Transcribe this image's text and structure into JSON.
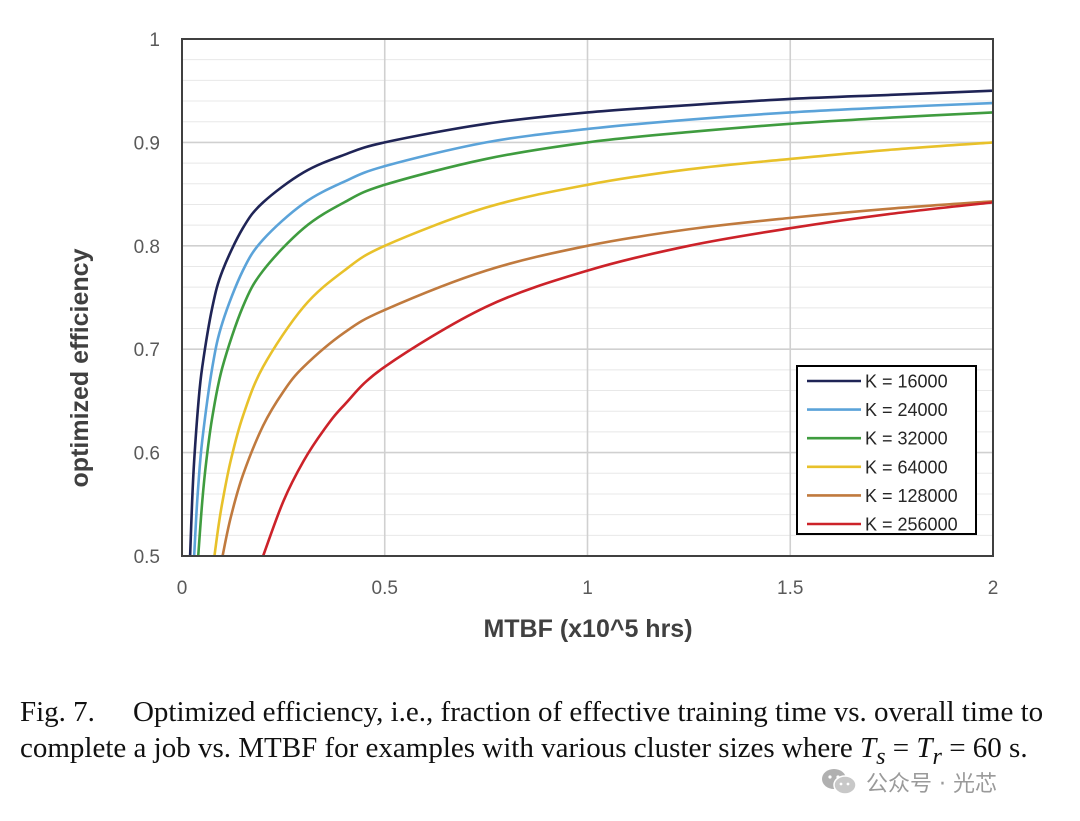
{
  "chart_data": {
    "type": "line",
    "title": "",
    "xlabel": "MTBF (x10^5 hrs)",
    "ylabel": "optimized efficiency",
    "xlim": [
      0,
      2
    ],
    "ylim": [
      0.5,
      1
    ],
    "x_ticks": [
      "0",
      "0.5",
      "1",
      "1.5",
      "2"
    ],
    "y_ticks": [
      "0.5",
      "0.6",
      "0.7",
      "0.8",
      "0.9",
      "1"
    ],
    "grid": "major and minor horizontal, major vertical",
    "legend_position": "bottom-right",
    "series": [
      {
        "name": "K = 16000",
        "color": "#1f2456",
        "x": [
          0.02,
          0.025,
          0.03,
          0.04,
          0.05,
          0.075,
          0.1,
          0.15,
          0.2,
          0.3,
          0.4,
          0.5,
          0.75,
          1.0,
          1.25,
          1.5,
          1.75,
          2.0
        ],
        "y": [
          0.5,
          0.553,
          0.592,
          0.646,
          0.683,
          0.741,
          0.776,
          0.817,
          0.842,
          0.871,
          0.888,
          0.9,
          0.918,
          0.929,
          0.936,
          0.942,
          0.946,
          0.95
        ]
      },
      {
        "name": "K = 24000",
        "color": "#5ba3d9",
        "x": [
          0.03,
          0.035,
          0.04,
          0.05,
          0.075,
          0.1,
          0.15,
          0.2,
          0.3,
          0.4,
          0.5,
          0.75,
          1.0,
          1.25,
          1.5,
          1.75,
          2.0
        ],
        "y": [
          0.5,
          0.537,
          0.567,
          0.612,
          0.683,
          0.726,
          0.776,
          0.806,
          0.841,
          0.862,
          0.877,
          0.9,
          0.913,
          0.922,
          0.929,
          0.934,
          0.938
        ]
      },
      {
        "name": "K = 32000",
        "color": "#3f9c3f",
        "x": [
          0.04,
          0.05,
          0.06,
          0.075,
          0.1,
          0.15,
          0.2,
          0.3,
          0.4,
          0.5,
          0.75,
          1.0,
          1.25,
          1.5,
          1.75,
          2.0
        ],
        "y": [
          0.5,
          0.553,
          0.592,
          0.635,
          0.683,
          0.741,
          0.776,
          0.817,
          0.842,
          0.859,
          0.884,
          0.9,
          0.91,
          0.918,
          0.924,
          0.929
        ]
      },
      {
        "name": "K = 64000",
        "color": "#e8c12a",
        "x": [
          0.08,
          0.09,
          0.1,
          0.12,
          0.15,
          0.2,
          0.3,
          0.4,
          0.5,
          0.75,
          1.0,
          1.25,
          1.5,
          1.75,
          2.0
        ],
        "y": [
          0.5,
          0.529,
          0.553,
          0.592,
          0.635,
          0.683,
          0.741,
          0.776,
          0.8,
          0.837,
          0.859,
          0.874,
          0.884,
          0.893,
          0.9
        ]
      },
      {
        "name": "K = 128000",
        "color": "#c07a3e",
        "x": [
          0.1,
          0.12,
          0.15,
          0.2,
          0.25,
          0.3,
          0.4,
          0.5,
          0.75,
          1.0,
          1.25,
          1.5,
          1.75,
          2.0
        ],
        "y": [
          0.5,
          0.537,
          0.578,
          0.626,
          0.659,
          0.683,
          0.716,
          0.738,
          0.776,
          0.8,
          0.816,
          0.827,
          0.836,
          0.843
        ]
      },
      {
        "name": "K = 256000",
        "color": "#cc2229",
        "x": [
          0.2,
          0.25,
          0.3,
          0.35,
          0.4,
          0.5,
          0.75,
          1.0,
          1.25,
          1.5,
          1.75,
          2.0
        ],
        "y": [
          0.5,
          0.553,
          0.592,
          0.622,
          0.646,
          0.683,
          0.741,
          0.776,
          0.8,
          0.817,
          0.831,
          0.842
        ]
      }
    ]
  },
  "caption": {
    "label": "Fig. 7.",
    "text": "Optimized efficiency, i.e., fraction of effective training time vs. overall time to complete a job vs. MTBF for examples with various cluster sizes where",
    "math_parts": [
      "T",
      "s",
      " = ",
      "T",
      "r",
      " = 60 s."
    ]
  },
  "watermark": {
    "text": "公众号 · 光芯",
    "icon": "wechat-icon"
  }
}
